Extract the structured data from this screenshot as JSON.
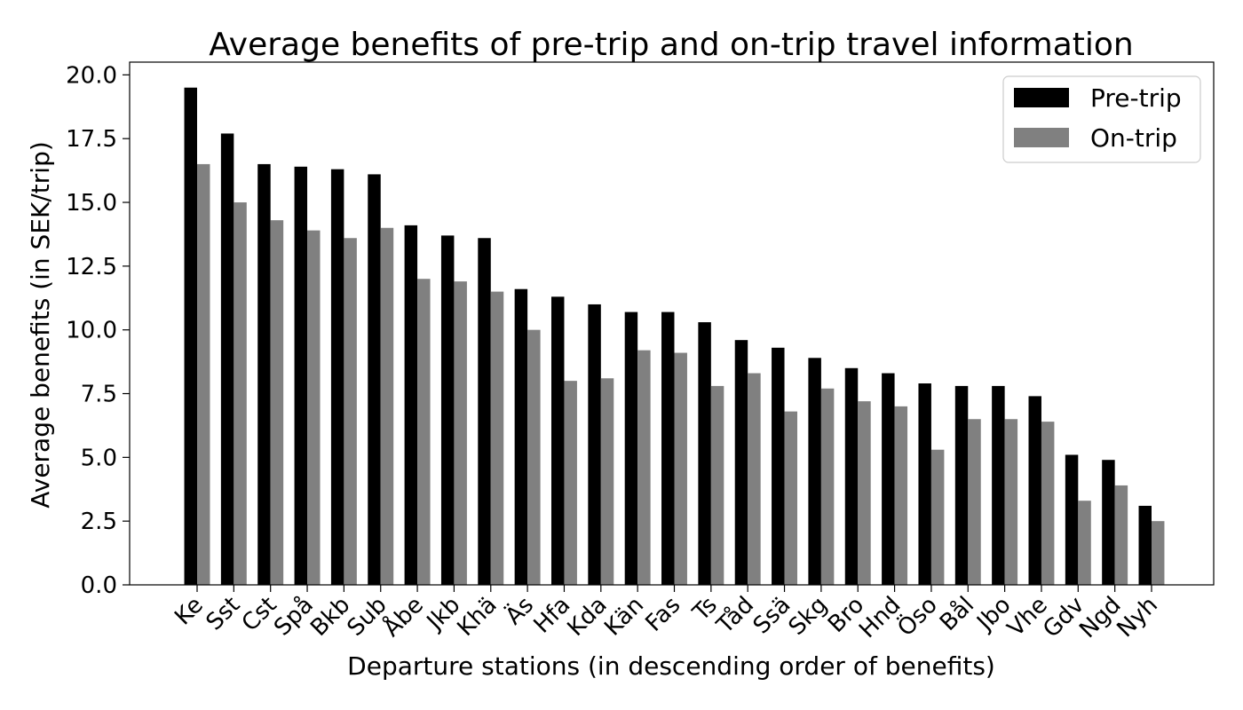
{
  "chart_data": {
    "type": "bar",
    "title": "Average benefits of pre-trip and on-trip travel information",
    "xlabel": "Departure stations (in descending order of benefits)",
    "ylabel": "Average benefits (in SEK/trip)",
    "ylim": [
      0,
      20.5
    ],
    "yticks": [
      "0.0",
      "2.5",
      "5.0",
      "7.5",
      "10.0",
      "12.5",
      "15.0",
      "17.5",
      "20.0"
    ],
    "grid": false,
    "legend_position": "top-right",
    "categories": [
      "Ke",
      "Sst",
      "Cst",
      "Spå",
      "Bkb",
      "Sub",
      "Åbe",
      "Jkb",
      "Khä",
      "Äs",
      "Hfa",
      "Kda",
      "Kän",
      "Fas",
      "Ts",
      "Tåd",
      "Ssä",
      "Skg",
      "Bro",
      "Hnd",
      "Öso",
      "Bål",
      "Jbo",
      "Vhe",
      "Gdv",
      "Ngd",
      "Nyh"
    ],
    "series": [
      {
        "name": "Pre-trip",
        "color": "#000000",
        "values": [
          19.5,
          17.7,
          16.5,
          16.4,
          16.3,
          16.1,
          14.1,
          13.7,
          13.6,
          11.6,
          11.3,
          11.0,
          10.7,
          10.7,
          10.3,
          9.6,
          9.3,
          8.9,
          8.5,
          8.3,
          7.9,
          7.8,
          7.8,
          7.4,
          5.1,
          4.9,
          3.1
        ]
      },
      {
        "name": "On-trip",
        "color": "#808080",
        "values": [
          16.5,
          15.0,
          14.3,
          13.9,
          13.6,
          14.0,
          12.0,
          11.9,
          11.5,
          10.0,
          8.0,
          8.1,
          9.2,
          9.1,
          7.8,
          8.3,
          6.8,
          7.7,
          7.2,
          7.0,
          5.3,
          6.5,
          6.5,
          6.4,
          3.3,
          3.9,
          2.5
        ]
      }
    ]
  }
}
